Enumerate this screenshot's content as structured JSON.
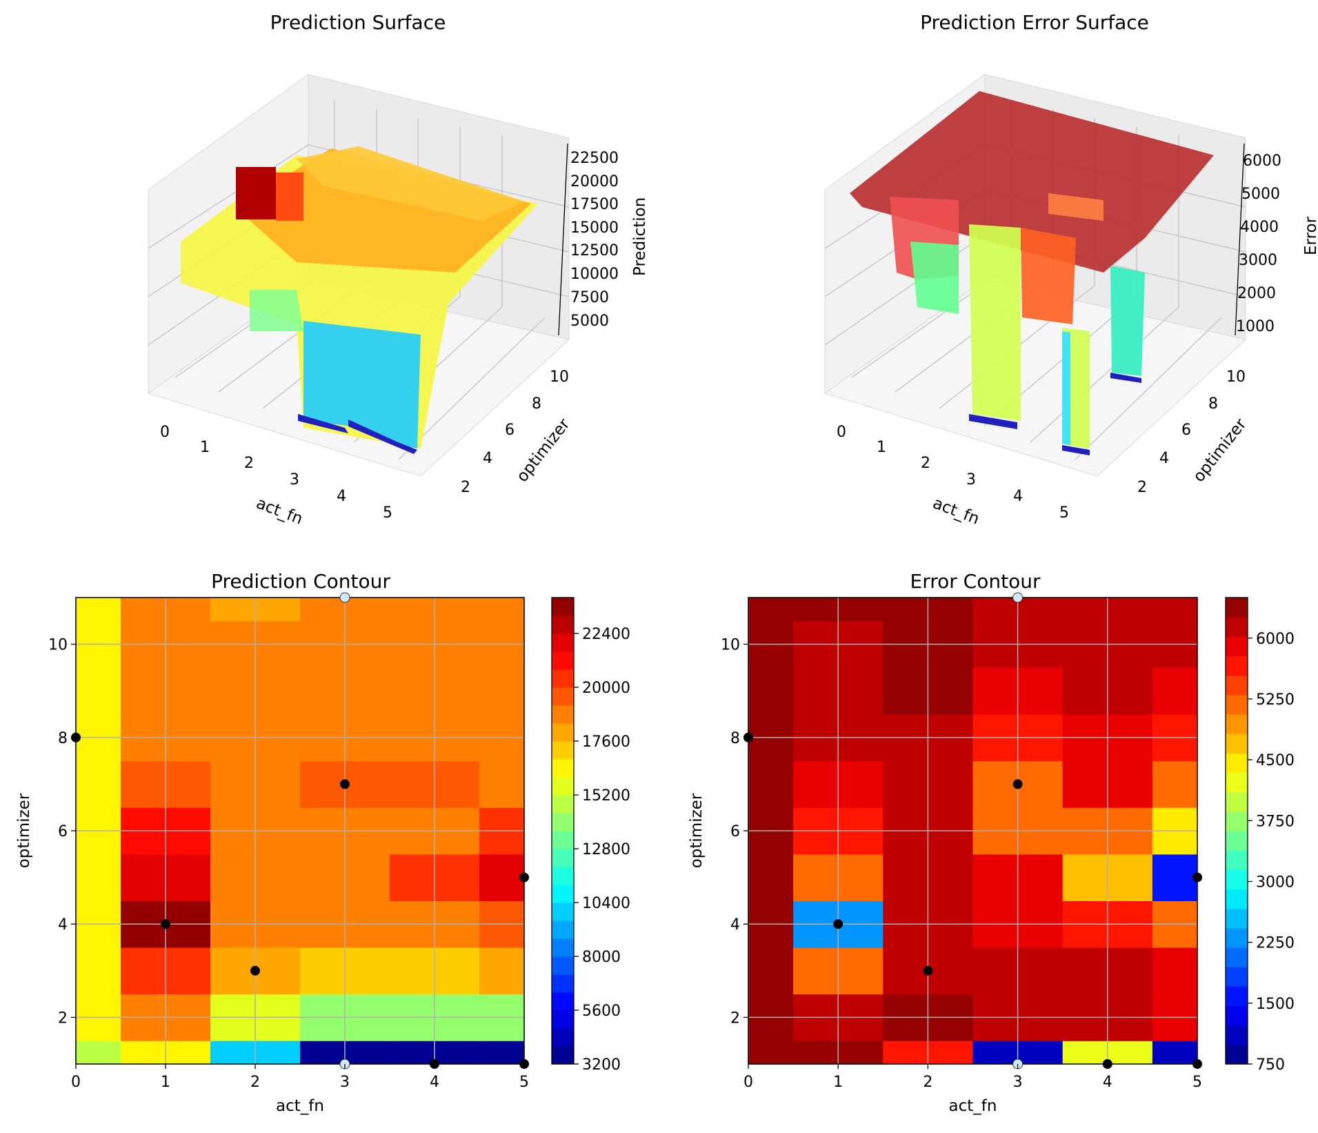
{
  "figure": {
    "titles": {
      "surface_pred": "Prediction Surface",
      "surface_err": "Prediction Error Surface",
      "contour_pred": "Prediction Contour",
      "contour_err": "Error Contour"
    }
  },
  "colors": {
    "jet_stops": [
      "#000080",
      "#0000ff",
      "#0080ff",
      "#00ffff",
      "#80ff80",
      "#ffff00",
      "#ff8000",
      "#ff0000",
      "#800000"
    ],
    "grid": "#b0b0b0",
    "pane": "#f2f2f2",
    "marker": "#000000",
    "marker_light": "#cfe8f7"
  },
  "chart_data": [
    {
      "type": "surface",
      "title": "Prediction Surface",
      "xlabel": "act_fn",
      "ylabel": "optimizer",
      "zlabel": "Prediction",
      "x_ticks": [
        0,
        1,
        2,
        3,
        4,
        5
      ],
      "y_ticks": [
        2,
        4,
        6,
        8,
        10
      ],
      "z_ticks": [
        5000,
        7500,
        10000,
        12500,
        15000,
        17500,
        20000,
        22500
      ],
      "z_range": [
        3200,
        23500
      ],
      "colormap": "jet",
      "grid": true
    },
    {
      "type": "surface",
      "title": "Prediction Error Surface",
      "xlabel": "act_fn",
      "ylabel": "optimizer",
      "zlabel": "Error",
      "x_ticks": [
        0,
        1,
        2,
        3,
        4,
        5
      ],
      "y_ticks": [
        2,
        4,
        6,
        8,
        10
      ],
      "z_ticks": [
        1000,
        2000,
        3000,
        4000,
        5000,
        6000
      ],
      "z_range": [
        750,
        6500
      ],
      "colormap": "jet",
      "grid": true
    },
    {
      "type": "heatmap",
      "title": "Prediction Contour",
      "xlabel": "act_fn",
      "ylabel": "optimizer",
      "xlim": [
        0,
        5
      ],
      "ylim": [
        1,
        11
      ],
      "x_ticks": [
        0,
        1,
        2,
        3,
        4,
        5
      ],
      "y_ticks": [
        2,
        4,
        6,
        8,
        10
      ],
      "colorbar_ticks": [
        3200,
        5600,
        8000,
        10400,
        12800,
        15200,
        17600,
        20000,
        22400
      ],
      "colorbar_range": [
        3200,
        24000
      ],
      "colorbar_levels": 26,
      "colormap": "jet",
      "grid": true,
      "x_bins": [
        0,
        1,
        2,
        3,
        4,
        5
      ],
      "y_bins": [
        1,
        2,
        3,
        4,
        5,
        6,
        7,
        8,
        9,
        10,
        11
      ],
      "values": [
        [
          14800,
          16000,
          9800,
          3300,
          3900,
          3400
        ],
        [
          16500,
          18700,
          15700,
          14000,
          14000,
          14000
        ],
        [
          16500,
          20600,
          17600,
          16800,
          16800,
          17600
        ],
        [
          16500,
          23800,
          19000,
          19000,
          19000,
          19800
        ],
        [
          16500,
          21600,
          19000,
          19000,
          20600,
          21600
        ],
        [
          16500,
          20800,
          19000,
          19000,
          19000,
          20600
        ],
        [
          16500,
          19800,
          19000,
          19800,
          19800,
          19000
        ],
        [
          16500,
          19000,
          19000,
          19000,
          19000,
          19000
        ],
        [
          16500,
          19000,
          18400,
          19000,
          18400,
          18400
        ],
        [
          16500,
          19000,
          18400,
          18400,
          18400,
          18400
        ],
        [
          16500,
          18400,
          17600,
          18400,
          18400,
          18400
        ]
      ],
      "points": [
        {
          "x": 0,
          "y": 8
        },
        {
          "x": 1,
          "y": 4
        },
        {
          "x": 2,
          "y": 3
        },
        {
          "x": 3,
          "y": 7
        },
        {
          "x": 5,
          "y": 5
        },
        {
          "x": 3,
          "y": 11,
          "light": true
        },
        {
          "x": 3,
          "y": 1,
          "light": true
        },
        {
          "x": 4,
          "y": 1
        },
        {
          "x": 5,
          "y": 1
        }
      ]
    },
    {
      "type": "heatmap",
      "title": "Error Contour",
      "xlabel": "act_fn",
      "ylabel": "optimizer",
      "xlim": [
        0,
        5
      ],
      "ylim": [
        1,
        11
      ],
      "x_ticks": [
        0,
        1,
        2,
        3,
        4,
        5
      ],
      "y_ticks": [
        2,
        4,
        6,
        8,
        10
      ],
      "colorbar_ticks": [
        750,
        1500,
        2250,
        3000,
        3750,
        4500,
        5250,
        6000
      ],
      "colorbar_range": [
        750,
        6500
      ],
      "colorbar_levels": 24,
      "colormap": "jet",
      "grid": true,
      "x_bins": [
        0,
        1,
        2,
        3,
        4,
        5
      ],
      "y_bins": [
        1,
        2,
        3,
        4,
        5,
        6,
        7,
        8,
        9,
        10,
        11
      ],
      "values": [
        [
          6400,
          6400,
          5600,
          1000,
          4200,
          1000
        ],
        [
          6400,
          6250,
          6450,
          6250,
          6250,
          6000
        ],
        [
          6400,
          5300,
          6250,
          6250,
          6250,
          6000
        ],
        [
          6400,
          2400,
          6250,
          6000,
          5600,
          5100
        ],
        [
          6400,
          5100,
          6250,
          5800,
          4800,
          1500
        ],
        [
          6400,
          5600,
          6250,
          5300,
          5300,
          4400
        ],
        [
          6400,
          6000,
          6250,
          5100,
          5800,
          5300
        ],
        [
          6400,
          6250,
          6250,
          5600,
          6000,
          5600
        ],
        [
          6400,
          6250,
          6450,
          6000,
          6250,
          6000
        ],
        [
          6400,
          6250,
          6450,
          6250,
          6250,
          6250
        ],
        [
          6400,
          6400,
          6450,
          6250,
          6250,
          6250
        ]
      ],
      "points": [
        {
          "x": 0,
          "y": 8
        },
        {
          "x": 1,
          "y": 4
        },
        {
          "x": 2,
          "y": 3
        },
        {
          "x": 3,
          "y": 7
        },
        {
          "x": 5,
          "y": 5
        },
        {
          "x": 3,
          "y": 11,
          "light": true
        },
        {
          "x": 3,
          "y": 1,
          "light": true
        },
        {
          "x": 4,
          "y": 1
        },
        {
          "x": 5,
          "y": 1
        }
      ]
    }
  ]
}
